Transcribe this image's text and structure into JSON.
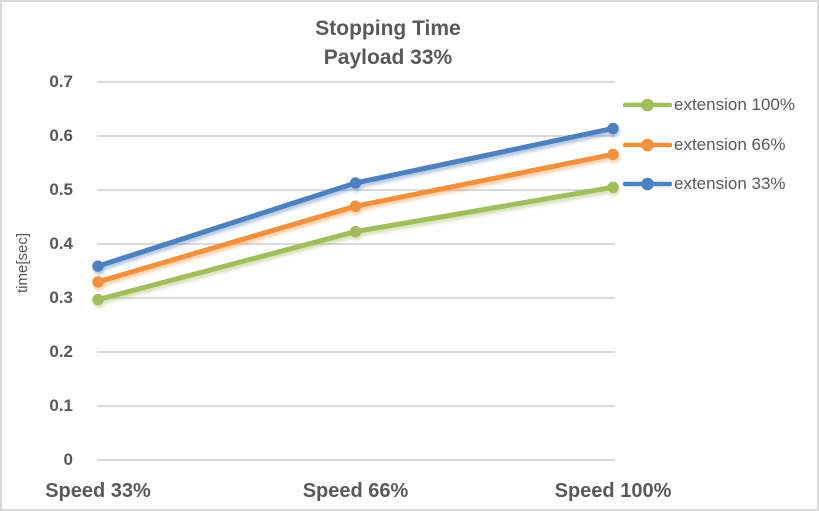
{
  "chart_data": {
    "type": "line",
    "title": "Stopping Time",
    "subtitle": "Payload 33%",
    "ylabel": "time[sec]",
    "xlabel": "",
    "categories": [
      "Speed 33%",
      "Speed 66%",
      "Speed 100%"
    ],
    "series": [
      {
        "name": "extension 100%",
        "color": "#A1BD5C",
        "values": [
          0.297,
          0.423,
          0.505
        ]
      },
      {
        "name": "extension 66%",
        "color": "#F2903D",
        "values": [
          0.33,
          0.47,
          0.566
        ]
      },
      {
        "name": "extension 33%",
        "color": "#4D80BE",
        "values": [
          0.359,
          0.513,
          0.614
        ]
      }
    ],
    "ylim": [
      0,
      0.7
    ],
    "yticks": [
      "0",
      "0.1",
      "0.2",
      "0.3",
      "0.4",
      "0.5",
      "0.6",
      "0.7"
    ],
    "grid": true,
    "legend_position": "right",
    "marker": "circle"
  },
  "colors": {
    "grid": "#D9D9D9",
    "text": "#595959",
    "border": "#D9D9D9",
    "background": "#FFFFFF"
  }
}
